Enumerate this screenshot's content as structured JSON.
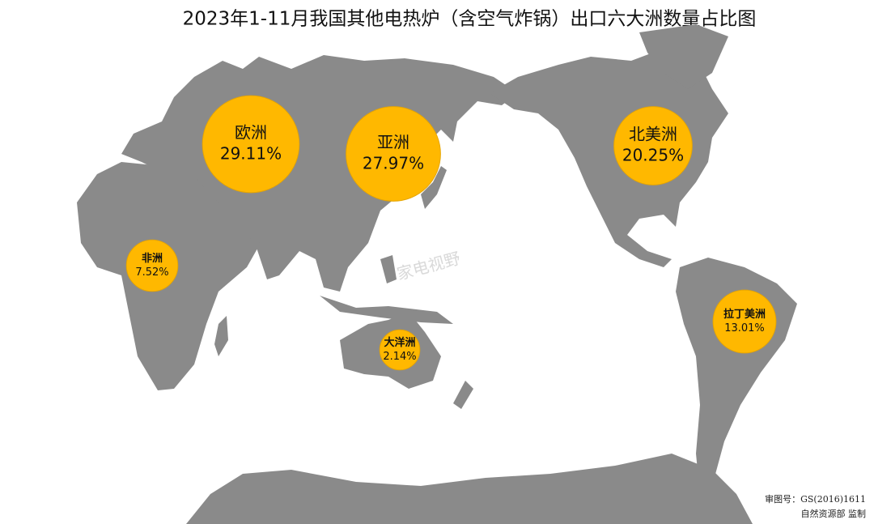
{
  "chart_data": {
    "type": "bubble-map",
    "title": "2023年1-11月我国其他电热炉（含空气炸锅）出口六大洲数量占比图",
    "categories": [
      "欧洲",
      "亚洲",
      "北美洲",
      "非洲",
      "大洋洲",
      "拉丁美洲"
    ],
    "values": [
      29.11,
      27.97,
      20.25,
      7.52,
      2.14,
      13.01
    ],
    "value_labels": [
      "29.11%",
      "27.97%",
      "20.25%",
      "7.52%",
      "2.14%",
      "13.01%"
    ],
    "color": "#ffb800",
    "watermark": "家电视野",
    "footer": [
      "审图号：GS(2016)1611",
      "自然资源部 监制"
    ]
  }
}
